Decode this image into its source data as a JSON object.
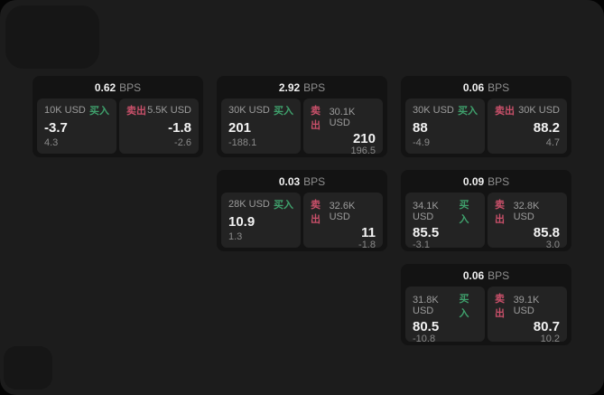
{
  "labels": {
    "bps": "BPS",
    "buy": "买入",
    "sell": "卖出"
  },
  "colors": {
    "buy_green": "#3fa06c",
    "sell_red": "#c9506a",
    "panel_bg": "#1c1c1c",
    "card_bg": "#131313",
    "tile_bg": "#232323"
  },
  "cards": [
    {
      "bps": "0.62",
      "buy": {
        "amount": "10K USD",
        "price": "-3.7",
        "delta": "4.3"
      },
      "sell": {
        "amount": "5.5K USD",
        "price": "-1.8",
        "delta": "-2.6"
      }
    },
    {
      "bps": "2.92",
      "buy": {
        "amount": "30K USD",
        "price": "201",
        "delta": "-188.1"
      },
      "sell": {
        "amount": "30.1K USD",
        "price": "210",
        "delta": "196.5"
      }
    },
    {
      "bps": "0.06",
      "buy": {
        "amount": "30K USD",
        "price": "88",
        "delta": "-4.9"
      },
      "sell": {
        "amount": "30K USD",
        "price": "88.2",
        "delta": "4.7"
      }
    },
    {
      "bps": "0.03",
      "buy": {
        "amount": "28K USD",
        "price": "10.9",
        "delta": "1.3"
      },
      "sell": {
        "amount": "32.6K USD",
        "price": "11",
        "delta": "-1.8"
      }
    },
    {
      "bps": "0.09",
      "buy": {
        "amount": "34.1K USD",
        "price": "85.5",
        "delta": "-3.1"
      },
      "sell": {
        "amount": "32.8K USD",
        "price": "85.8",
        "delta": "3.0"
      }
    },
    {
      "bps": "0.06",
      "buy": {
        "amount": "31.8K USD",
        "price": "80.5",
        "delta": "-10.8"
      },
      "sell": {
        "amount": "39.1K USD",
        "price": "80.7",
        "delta": "10.2"
      }
    }
  ]
}
